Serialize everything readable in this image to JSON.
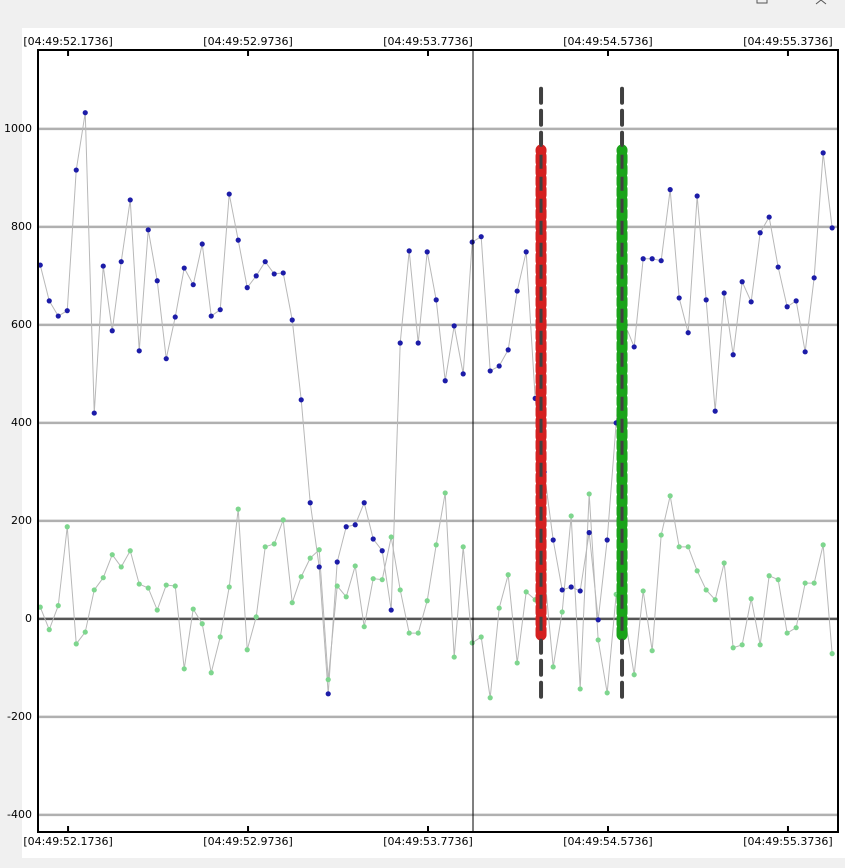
{
  "chart_data": {
    "type": "line",
    "x": [
      52.05,
      52.09,
      52.13,
      52.17,
      52.21,
      52.25,
      52.29,
      52.33,
      52.37,
      52.41,
      52.45,
      52.49,
      52.53,
      52.57,
      52.61,
      52.65,
      52.69,
      52.73,
      52.77,
      52.81,
      52.85,
      52.89,
      52.93,
      52.97,
      53.01,
      53.05,
      53.09,
      53.13,
      53.17,
      53.21,
      53.25,
      53.29,
      53.33,
      53.37,
      53.41,
      53.45,
      53.49,
      53.53,
      53.57,
      53.61,
      53.65,
      53.69,
      53.73,
      53.77,
      53.81,
      53.85,
      53.89,
      53.93,
      53.97,
      54.01,
      54.05,
      54.09,
      54.13,
      54.17,
      54.21,
      54.25,
      54.29,
      54.33,
      54.37,
      54.41,
      54.45,
      54.49,
      54.53,
      54.57,
      54.61,
      54.65,
      54.69,
      54.73,
      54.77,
      54.81,
      54.85,
      54.89,
      54.93,
      54.97,
      55.01,
      55.05,
      55.09,
      55.13,
      55.17,
      55.21,
      55.25,
      55.29,
      55.33,
      55.37,
      55.41,
      55.45,
      55.49,
      55.53,
      55.57
    ],
    "series": [
      {
        "color": "#1c1ca8",
        "values": [
          722,
          649,
          618,
          629,
          916,
          1033,
          420,
          720,
          588,
          729,
          855,
          547,
          794,
          690,
          531,
          616,
          716,
          682,
          765,
          618,
          631,
          867,
          773,
          676,
          700,
          729,
          704,
          706,
          610,
          447,
          237,
          106,
          -153,
          116,
          188,
          192,
          237,
          163,
          139,
          18,
          563,
          751,
          563,
          749,
          651,
          486,
          598,
          500,
          769,
          780,
          506,
          516,
          549,
          669,
          749,
          450,
          300,
          161,
          59,
          65,
          57,
          176,
          -2,
          161,
          400,
          600,
          555,
          735,
          735,
          731,
          876,
          655,
          584,
          863,
          651,
          424,
          665,
          539,
          688,
          647,
          788,
          820,
          718,
          637,
          649,
          545,
          696,
          951,
          798
        ]
      },
      {
        "color": "#7ed68e",
        "values": [
          24,
          -22,
          27,
          188,
          -51,
          -27,
          59,
          84,
          131,
          106,
          139,
          71,
          63,
          18,
          69,
          67,
          -102,
          20,
          -10,
          -110,
          -37,
          65,
          224,
          -63,
          4,
          147,
          153,
          202,
          33,
          86,
          124,
          141,
          -124,
          67,
          45,
          108,
          -16,
          82,
          80,
          167,
          59,
          -29,
          -29,
          37,
          151,
          257,
          -78,
          147,
          -49,
          -37,
          -161,
          22,
          90,
          -90,
          55,
          39,
          100,
          -98,
          14,
          210,
          -143,
          255,
          -43,
          -151,
          50,
          0,
          -114,
          57,
          -65,
          171,
          251,
          147,
          147,
          98,
          59,
          39,
          114,
          -59,
          -53,
          41,
          -53,
          88,
          80,
          -29,
          -18,
          73,
          73,
          151,
          -71
        ]
      }
    ],
    "line_color": "#b8b8b8",
    "xlim": [
      52.04,
      55.596
    ],
    "xticks": [
      {
        "value": 52.1736,
        "label": "[04:49:52.1736]"
      },
      {
        "value": 52.9736,
        "label": "[04:49:52.9736]"
      },
      {
        "value": 53.7736,
        "label": "[04:49:53.7736]"
      },
      {
        "value": 54.5736,
        "label": "[04:49:54.5736]"
      },
      {
        "value": 55.3736,
        "label": "[04:49:55.3736]"
      }
    ],
    "ylim": [
      -435,
      1161
    ],
    "yticks": [
      -400,
      -200,
      0,
      200,
      400,
      600,
      800,
      1000
    ],
    "grid": true,
    "cursor_lines": [
      {
        "x": 53.9736,
        "color": "#000000"
      }
    ],
    "range_markers": [
      {
        "x": 54.276,
        "color": "#d42020",
        "span": [
          -33,
          957
        ],
        "outer_span": [
          -159,
          1094
        ]
      },
      {
        "x": 54.636,
        "color": "#1aa31a",
        "span": [
          -33,
          957
        ],
        "outer_span": [
          -159,
          1094
        ]
      }
    ]
  }
}
